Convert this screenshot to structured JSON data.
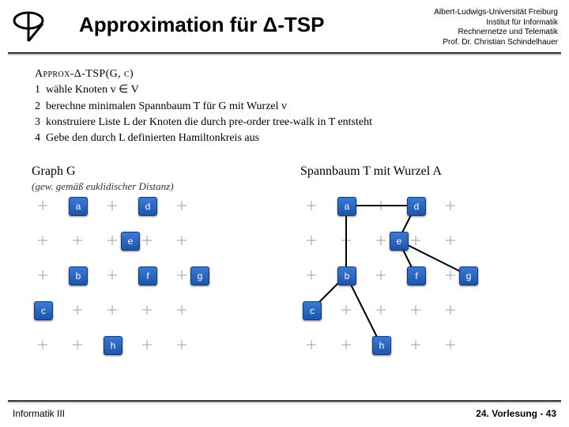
{
  "title": "Approximation für Δ-TSP",
  "affiliation": {
    "l1": "Albert-Ludwigs-Universität Freiburg",
    "l2": "Institut für Informatik",
    "l3": "Rechnernetze und Telematik",
    "l4": "Prof. Dr. Christian Schindelhauer"
  },
  "algorithm": {
    "name": "Approx-Δ-TSP(G, c)",
    "lines": [
      "wähle Knoten  v ∈ V",
      "berechne minimalen Spannbaum  T  für  G  mit Wurzel  v",
      "konstruiere Liste  L  der Knoten die durch pre-order tree-walk in  T  entsteht",
      "Gebe den durch  L  definierten Hamiltonkreis aus"
    ]
  },
  "graphLeft": {
    "title": "Graph G",
    "subtitle": "(gew. gemäß euklidischer Distanz)"
  },
  "graphRight": {
    "title": "Spannbaum T mit Wurzel A"
  },
  "grid": {
    "tick_spacing": 44,
    "color": "#9aa0a6",
    "cols": 5,
    "rows": 5
  },
  "node_style": {
    "size": 22,
    "fill_top": "#3a7ad6",
    "fill_bottom": "#1f54aa",
    "border": "#0d3a82",
    "text_color": "#ffffff",
    "font_size": 12,
    "radius": 3
  },
  "nodes": {
    "a": {
      "label": "a",
      "gx": 1,
      "gy": 0
    },
    "d": {
      "label": "d",
      "gx": 3,
      "gy": 0
    },
    "e": {
      "label": "e",
      "gx": 2.5,
      "gy": 1
    },
    "b": {
      "label": "b",
      "gx": 1,
      "gy": 2
    },
    "f": {
      "label": "f",
      "gx": 3,
      "gy": 2
    },
    "g": {
      "label": "g",
      "gx": 4.5,
      "gy": 2
    },
    "c": {
      "label": "c",
      "gx": 0,
      "gy": 3
    },
    "h": {
      "label": "h",
      "gx": 2,
      "gy": 4
    }
  },
  "edges_right": [
    [
      "a",
      "b"
    ],
    [
      "b",
      "c"
    ],
    [
      "b",
      "h"
    ],
    [
      "a",
      "d"
    ],
    [
      "d",
      "e"
    ],
    [
      "e",
      "f"
    ],
    [
      "e",
      "g"
    ]
  ],
  "footer": {
    "left": "Informatik III",
    "right": "24. Vorlesung - 43"
  }
}
